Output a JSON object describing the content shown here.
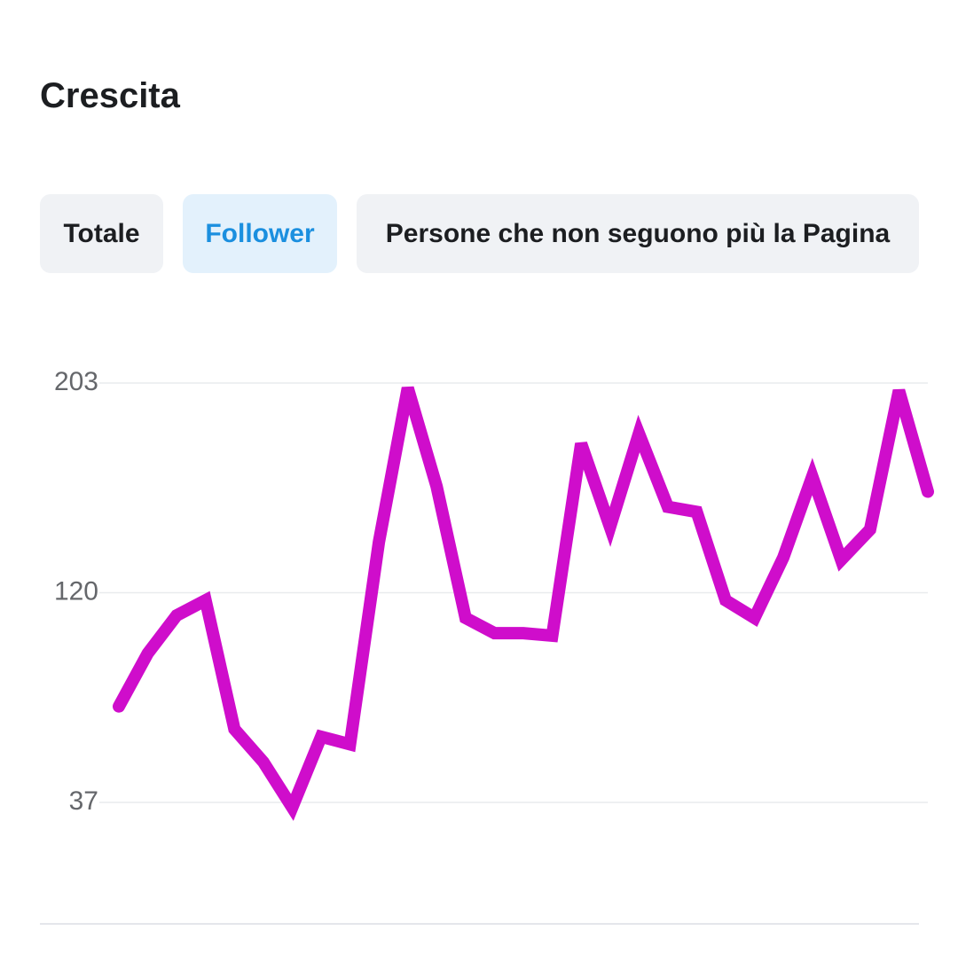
{
  "header": {
    "title": "Crescita"
  },
  "tabs": [
    {
      "label": "Totale",
      "selected": false
    },
    {
      "label": "Follower",
      "selected": true
    },
    {
      "label": "Persone che non seguono più la Pagina",
      "selected": false
    }
  ],
  "chart_data": {
    "type": "line",
    "color": "#cf0dcb",
    "categories": [
      null,
      null,
      null,
      null,
      null,
      null,
      null,
      null,
      null,
      null,
      null,
      null,
      null,
      null,
      null,
      null,
      null,
      null,
      null,
      null,
      null,
      null,
      null,
      null,
      null,
      null,
      null,
      null,
      null
    ],
    "values": [
      75,
      96,
      111,
      117,
      66,
      53,
      35,
      63,
      60,
      140,
      201,
      162,
      110,
      104,
      104,
      103,
      179,
      146,
      183,
      154,
      152,
      117,
      110,
      134,
      166,
      133,
      145,
      200,
      160
    ],
    "ylim": [
      37,
      203
    ],
    "yticks": [
      37,
      120,
      203
    ],
    "grid": true
  }
}
